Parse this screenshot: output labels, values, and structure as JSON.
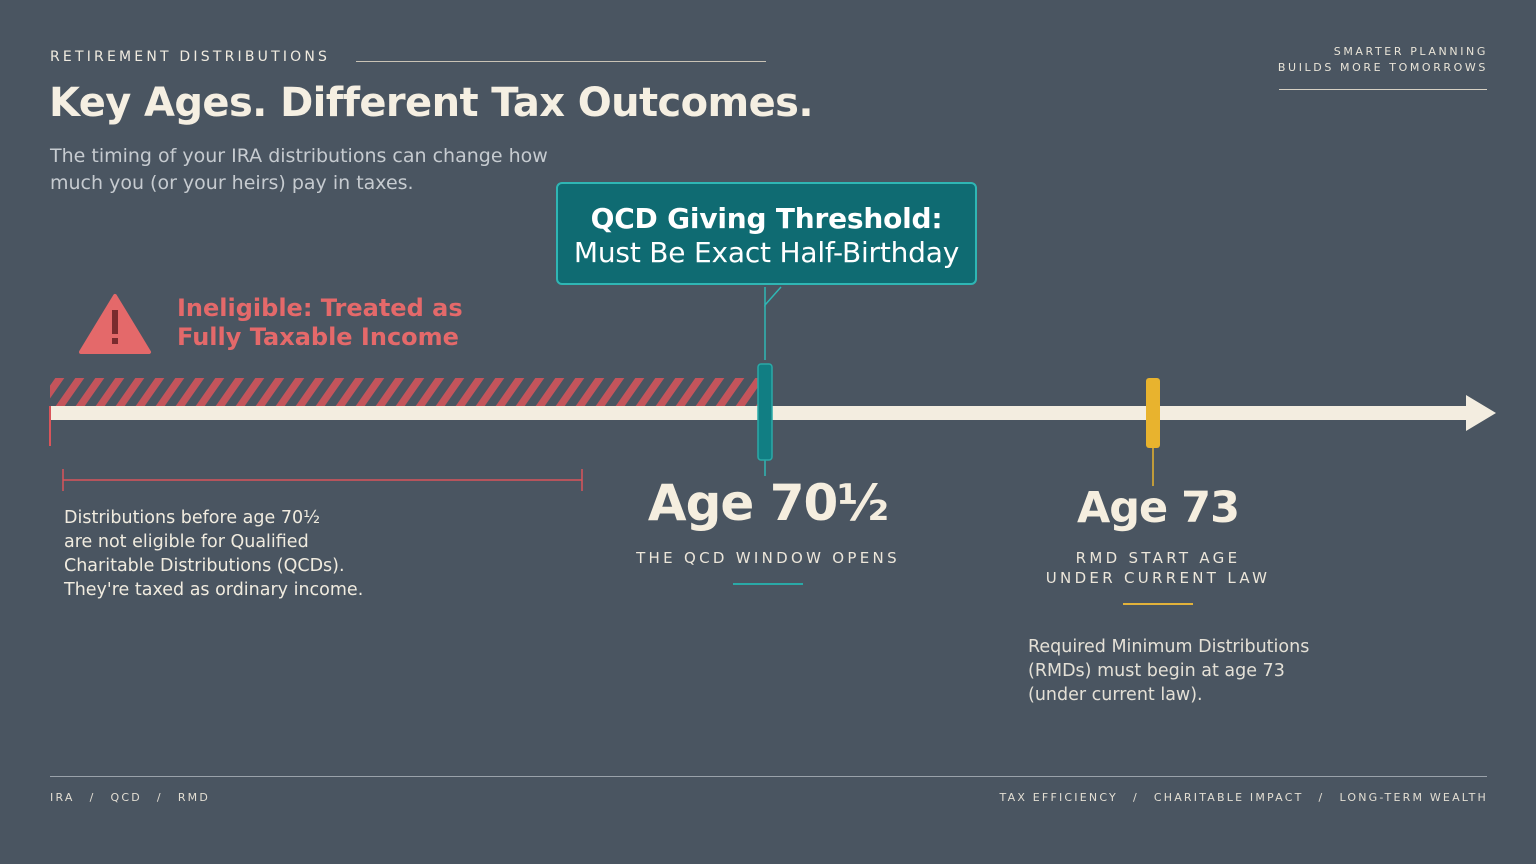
{
  "header": {
    "eyebrow": "RETIREMENT DISTRIBUTIONS",
    "title": "Key Ages. Different Tax Outcomes.",
    "subtitle": "The timing of your IRA distributions can change how much you (or your heirs) pay in taxes.",
    "tagline": "SMARTER PLANNING\nBUILDS MORE TOMORROWS"
  },
  "callout": {
    "title": "QCD Giving Threshold:",
    "body": "Must Be Exact Half-Birthday"
  },
  "warning": {
    "icon": "warning-triangle-icon",
    "text": "Ineligible: Treated as\nFully Taxable Income"
  },
  "milestones": {
    "qcd": {
      "age": "Age 70½",
      "caption": "THE QCD WINDOW OPENS"
    },
    "rmd": {
      "age": "Age 73",
      "caption": "RMD START AGE\nUNDER CURRENT LAW",
      "note": "Required Minimum Distributions\n(RMDs) must begin at age 73\n(under current law)."
    }
  },
  "left_note": "Distributions before age 70½\nare not eligible for Qualified\nCharitable Distributions (QCDs).\nThey're taxed as ordinary income.",
  "footer": {
    "left": [
      "IRA",
      "QCD",
      "RMD"
    ],
    "right": [
      "TAX EFFICIENCY",
      "CHARITABLE IMPACT",
      "LONG-TERM WEALTH"
    ]
  },
  "colors": {
    "background": "#4a5561",
    "timeline": "#f3ede0",
    "ineligible": "#e4696a",
    "qcd": "#1a8f93",
    "rmd": "#e8b32e"
  }
}
